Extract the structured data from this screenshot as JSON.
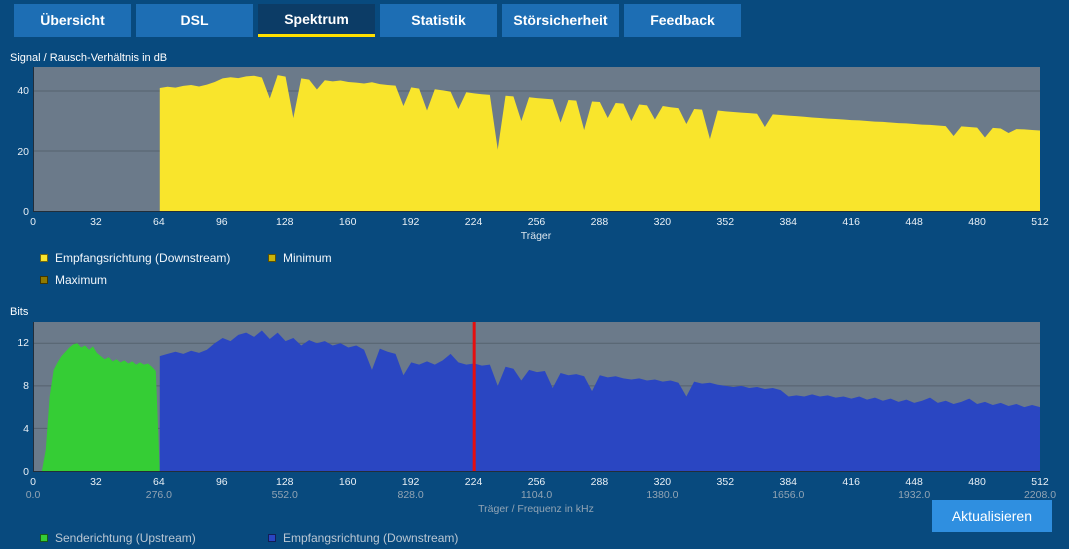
{
  "nav": {
    "tabs": [
      {
        "label": "Übersicht",
        "active": false
      },
      {
        "label": "DSL",
        "active": false
      },
      {
        "label": "Spektrum",
        "active": true
      },
      {
        "label": "Statistik",
        "active": false
      },
      {
        "label": "Störsicherheit",
        "active": false
      },
      {
        "label": "Feedback",
        "active": false
      }
    ]
  },
  "colors": {
    "page_bg": "#084a7e",
    "tab_bg": "#1d6eb4",
    "tab_active_bg": "#0c3c66",
    "tab_active_underline": "#ffe000",
    "plot_bg": "#6b7a8a",
    "snr_downstream": "#f9e52c",
    "bits_upstream": "#35cd35",
    "bits_downstream": "#2a46c2",
    "marker_red": "#e60e0e",
    "button_bg": "#2f8fe0"
  },
  "footer": {
    "refresh_button": "Aktualisieren"
  },
  "chart_data": [
    {
      "type": "area",
      "title": "Signal / Rausch-Verhältnis in dB",
      "xlabel": "Träger",
      "x_range": [
        0,
        512
      ],
      "y_range": [
        0,
        48
      ],
      "y_ticks": [
        0,
        20,
        40
      ],
      "x_ticks": [
        0,
        32,
        64,
        96,
        128,
        160,
        192,
        224,
        256,
        288,
        320,
        352,
        384,
        416,
        448,
        480,
        512
      ],
      "grid": true,
      "legend": [
        {
          "label": "Empfangsrichtung (Downstream)",
          "color": "#f9e52c"
        },
        {
          "label": "Minimum",
          "color": "#c9b40a"
        },
        {
          "label": "Maximum",
          "color": "#8f7a00"
        }
      ],
      "series": [
        {
          "name": "Empfangsrichtung (Downstream)",
          "color": "#f9e52c",
          "x_start": 64,
          "x_step": 4,
          "values": [
            41.0,
            41.4,
            41.1,
            41.7,
            42.0,
            41.5,
            42.1,
            43.0,
            44.2,
            44.6,
            44.3,
            44.9,
            45.1,
            44.5,
            37.5,
            45.3,
            44.8,
            31.0,
            44.2,
            43.8,
            40.5,
            43.6,
            43.2,
            43.5,
            43.0,
            42.8,
            42.5,
            42.9,
            42.3,
            42.0,
            41.8,
            35.0,
            41.2,
            40.8,
            33.5,
            40.6,
            40.2,
            39.8,
            34.0,
            39.6,
            39.2,
            38.9,
            38.7,
            20.5,
            38.4,
            38.2,
            30.0,
            37.9,
            37.6,
            37.4,
            37.2,
            29.5,
            37.0,
            36.8,
            27.0,
            36.5,
            36.3,
            31.0,
            36.0,
            35.8,
            30.0,
            35.5,
            35.2,
            30.5,
            35.0,
            34.6,
            34.3,
            29.0,
            34.0,
            33.8,
            24.0,
            33.5,
            33.2,
            33.0,
            32.8,
            32.6,
            32.4,
            28.0,
            32.2,
            32.0,
            31.8,
            31.6,
            31.4,
            31.2,
            31.0,
            30.8,
            30.7,
            30.5,
            30.3,
            30.2,
            30.0,
            29.8,
            29.7,
            29.5,
            29.3,
            29.2,
            29.0,
            28.8,
            28.7,
            28.5,
            28.3,
            25.0,
            28.2,
            28.0,
            27.8,
            24.5,
            27.7,
            27.5,
            26.0,
            27.3,
            27.2,
            27.0,
            26.8
          ]
        }
      ]
    },
    {
      "type": "area",
      "title": "Bits",
      "xlabel": "Träger / Frequenz in kHz",
      "x_range": [
        0,
        512
      ],
      "y_range": [
        0,
        14
      ],
      "y_ticks": [
        0,
        4,
        8,
        12
      ],
      "x_ticks": [
        0,
        32,
        64,
        96,
        128,
        160,
        192,
        224,
        256,
        288,
        320,
        352,
        384,
        416,
        448,
        480,
        512
      ],
      "freq_ticks": [
        {
          "x": 0,
          "label": "0.0"
        },
        {
          "x": 64,
          "label": "276.0"
        },
        {
          "x": 128,
          "label": "552.0"
        },
        {
          "x": 192,
          "label": "828.0"
        },
        {
          "x": 256,
          "label": "1104.0"
        },
        {
          "x": 320,
          "label": "1380.0"
        },
        {
          "x": 384,
          "label": "1656.0"
        },
        {
          "x": 448,
          "label": "1932.0"
        },
        {
          "x": 512,
          "label": "2208.0"
        }
      ],
      "marker_line": {
        "x": 224,
        "color": "#e60e0e"
      },
      "grid": true,
      "legend": [
        {
          "label": "Senderichtung (Upstream)",
          "color": "#35cd35"
        },
        {
          "label": "Empfangsrichtung (Downstream)",
          "color": "#2a46c2"
        }
      ],
      "series": [
        {
          "name": "Senderichtung (Upstream)",
          "color": "#35cd35",
          "x_start": 0,
          "x_step": 2,
          "values": [
            0,
            0,
            0,
            2.0,
            7.0,
            9.5,
            10.2,
            10.8,
            11.2,
            11.6,
            11.9,
            12.0,
            11.6,
            11.8,
            11.4,
            11.7,
            11.1,
            10.8,
            10.5,
            10.7,
            10.3,
            10.5,
            10.2,
            10.4,
            10.1,
            10.3,
            10.0,
            10.2,
            10.0,
            10.1,
            9.8,
            9.4,
            0
          ]
        },
        {
          "name": "Empfangsrichtung (Downstream)",
          "color": "#2a46c2",
          "x_start": 64,
          "x_step": 4,
          "values": [
            10.8,
            11.0,
            11.2,
            11.0,
            11.3,
            11.1,
            11.4,
            12.0,
            12.5,
            12.2,
            12.8,
            13.0,
            12.6,
            13.2,
            12.4,
            13.0,
            12.2,
            12.5,
            11.8,
            12.3,
            12.0,
            12.2,
            11.8,
            12.0,
            11.6,
            11.8,
            11.4,
            9.5,
            11.5,
            11.2,
            11.0,
            9.0,
            10.2,
            10.0,
            10.3,
            10.0,
            10.4,
            11.0,
            10.2,
            10.0,
            10.1,
            9.9,
            10.0,
            8.0,
            9.8,
            9.6,
            8.5,
            9.5,
            9.3,
            9.4,
            7.8,
            9.2,
            9.0,
            9.1,
            8.9,
            7.5,
            9.0,
            8.8,
            8.9,
            8.7,
            8.6,
            8.7,
            8.5,
            8.6,
            8.4,
            8.5,
            8.3,
            7.0,
            8.4,
            8.2,
            8.3,
            8.1,
            8.0,
            7.9,
            8.0,
            7.8,
            7.9,
            7.7,
            7.8,
            7.6,
            7.0,
            7.1,
            7.0,
            7.2,
            7.0,
            7.1,
            6.9,
            7.0,
            6.8,
            7.0,
            6.7,
            6.9,
            6.6,
            6.8,
            6.5,
            6.7,
            6.4,
            6.6,
            6.9,
            6.4,
            6.6,
            6.3,
            6.5,
            6.8,
            6.3,
            6.5,
            6.2,
            6.4,
            6.1,
            6.3,
            6.0,
            6.2,
            6.0
          ]
        }
      ]
    }
  ]
}
